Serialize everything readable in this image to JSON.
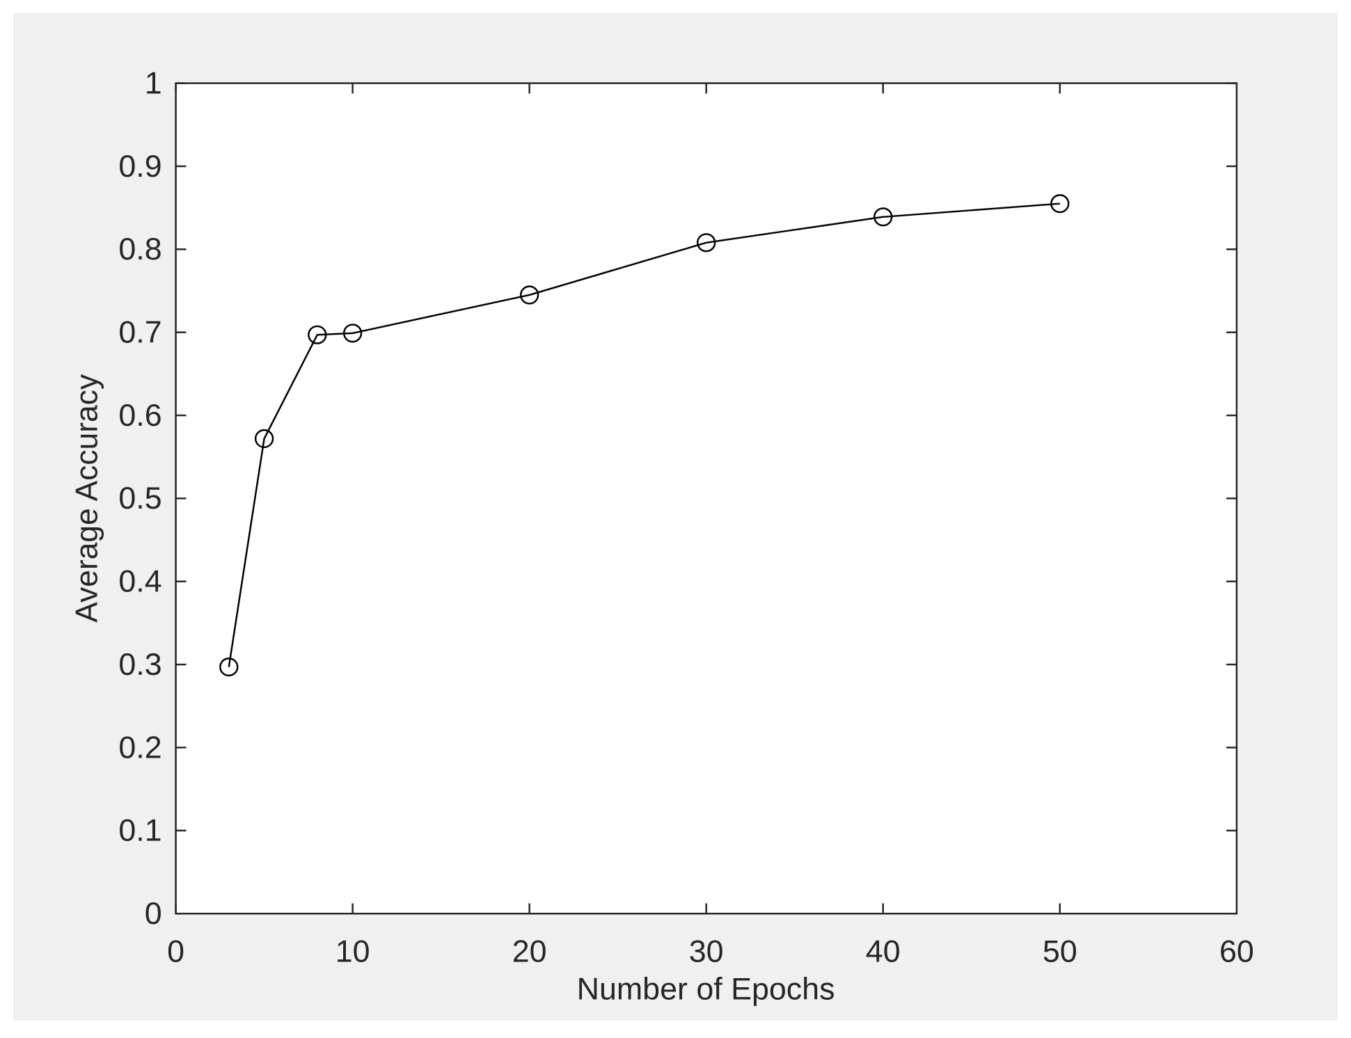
{
  "chart_data": {
    "type": "line",
    "xlabel": "Number of Epochs",
    "ylabel": "Average Accuracy",
    "x": [
      3,
      5,
      8,
      10,
      20,
      30,
      40,
      50
    ],
    "series": [
      {
        "color": "#000000",
        "values": [
          0.297,
          0.572,
          0.697,
          0.699,
          0.745,
          0.808,
          0.839,
          0.855
        ]
      }
    ],
    "xlim": [
      0,
      60
    ],
    "xticks": [
      0,
      10,
      20,
      30,
      40,
      50,
      60
    ],
    "ylim": [
      0,
      1
    ],
    "yticks": [
      0,
      0.1,
      0.2,
      0.3,
      0.4,
      0.5,
      0.6,
      0.7,
      0.8,
      0.9,
      1
    ],
    "grid": false,
    "marker": "circle"
  }
}
